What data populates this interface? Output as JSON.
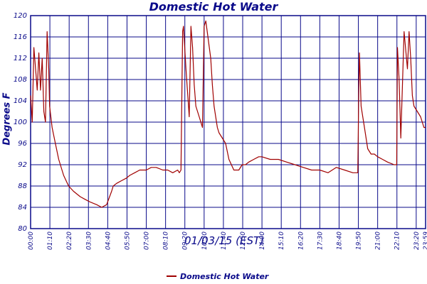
{
  "chart_data": {
    "type": "line",
    "title": "Domestic Hot Water",
    "xlabel": "01/03/15 (EST)",
    "ylabel": "Degrees F",
    "ylim": [
      80,
      120
    ],
    "yticks": [
      80,
      84,
      88,
      92,
      96,
      100,
      104,
      108,
      112,
      116,
      120
    ],
    "x_range_hours": [
      0,
      23.9
    ],
    "xticks": [
      "00:00",
      "01:10",
      "02:20",
      "03:30",
      "04:40",
      "05:50",
      "07:00",
      "08:10",
      "09:20",
      "10:30",
      "11:40",
      "12:50",
      "14:00",
      "15:10",
      "16:20",
      "17:30",
      "18:40",
      "19:50",
      "21:00",
      "22:10",
      "23:20",
      "23:59"
    ],
    "grid": true,
    "legend_position": "bottom-center",
    "series": [
      {
        "name": "Domestic Hot Water",
        "color": "#a00000",
        "x_hours": [
          0,
          0.1,
          0.2,
          0.3,
          0.4,
          0.5,
          0.6,
          0.7,
          0.8,
          0.9,
          1.0,
          1.1,
          1.15,
          1.3,
          1.5,
          1.7,
          2.0,
          2.3,
          2.6,
          3.0,
          3.3,
          3.6,
          4.0,
          4.3,
          4.6,
          4.9,
          5.0,
          5.2,
          5.5,
          5.8,
          6.0,
          6.3,
          6.6,
          7.0,
          7.3,
          7.6,
          8.0,
          8.3,
          8.6,
          8.9,
          9.0,
          9.1,
          9.2,
          9.25,
          9.4,
          9.6,
          9.7,
          9.8,
          9.9,
          10.0,
          10.2,
          10.4,
          10.5,
          10.6,
          10.9,
          11.0,
          11.1,
          11.2,
          11.3,
          11.4,
          11.6,
          11.8,
          12.0,
          12.3,
          12.6,
          12.8,
          13.0,
          13.2,
          13.5,
          13.8,
          14.0,
          14.5,
          15.0,
          15.5,
          16.0,
          16.5,
          17.0,
          17.5,
          18.0,
          18.5,
          19.0,
          19.5,
          19.8,
          19.85,
          19.9,
          20.0,
          20.2,
          20.4,
          20.6,
          20.8,
          21.0,
          21.3,
          21.6,
          22.0,
          22.15,
          22.2,
          22.3,
          22.4,
          22.6,
          22.8,
          22.9,
          23.0,
          23.1,
          23.2,
          23.4,
          23.6,
          23.8,
          23.9
        ],
        "values": [
          105,
          100,
          114,
          110,
          106,
          113,
          106,
          112,
          102,
          100,
          117,
          110,
          103,
          99,
          96,
          93,
          90,
          88,
          87,
          86,
          85.5,
          85,
          84.5,
          84,
          84.5,
          87,
          88,
          88.5,
          89,
          89.5,
          90,
          90.5,
          91,
          91,
          91.5,
          91.5,
          91,
          91,
          90.5,
          91,
          90.5,
          91,
          117,
          118,
          110,
          101,
          118,
          114,
          107,
          103,
          101,
          99,
          118,
          119,
          112,
          107,
          103,
          101,
          99,
          98,
          97,
          96,
          93,
          91,
          91,
          92,
          92,
          92.5,
          93,
          93.5,
          93.5,
          93,
          93,
          92.5,
          92,
          91.5,
          91,
          91,
          90.5,
          91.5,
          91,
          90.5,
          90.5,
          105,
          113,
          103,
          99,
          95,
          94,
          94,
          93.5,
          93,
          92.5,
          92,
          92,
          114,
          108,
          97,
          117,
          110,
          117,
          112,
          105,
          103,
          102,
          101,
          99,
          99
        ]
      }
    ]
  }
}
